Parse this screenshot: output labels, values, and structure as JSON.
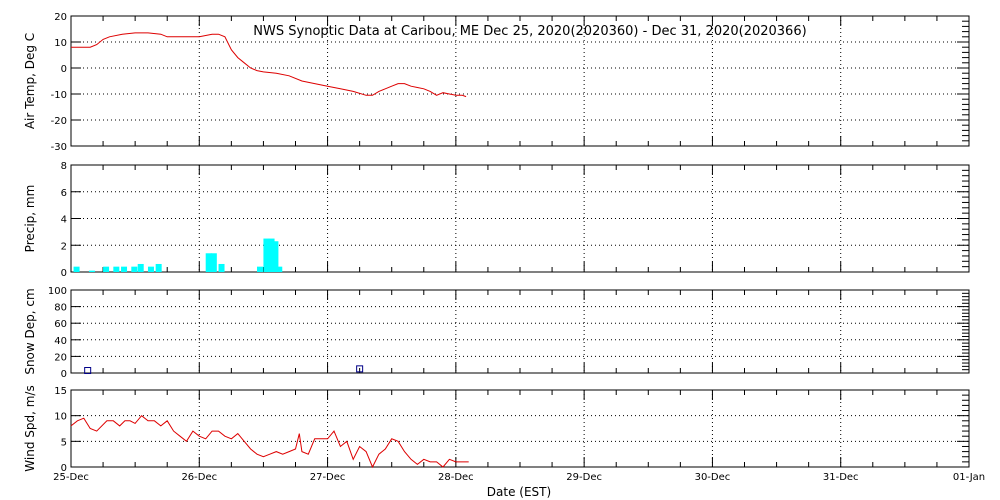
{
  "title": "NWS Synoptic Data at Caribou, ME    Dec 25, 2020(2020360) - Dec 31, 2020(2020366)",
  "colors": {
    "line": "#dd0000",
    "bar": "#00ffff",
    "marker": "#000088",
    "axis": "#000000",
    "grid": "#000000"
  },
  "x_axis": {
    "label": "Date (EST)",
    "ticks": [
      "25-Dec",
      "26-Dec",
      "27-Dec",
      "28-Dec",
      "29-Dec",
      "30-Dec",
      "31-Dec",
      "01-Jan"
    ],
    "range_days": [
      0,
      7
    ]
  },
  "chart_data": [
    {
      "type": "line",
      "name": "air-temp",
      "ylabel": "Air Temp, Deg C",
      "ylim": [
        -30,
        20
      ],
      "yticks": [
        20,
        10,
        0,
        -10,
        -20,
        -30
      ],
      "grid": true,
      "x": [
        0,
        0.08,
        0.15,
        0.2,
        0.25,
        0.3,
        0.4,
        0.5,
        0.6,
        0.7,
        0.75,
        0.8,
        0.9,
        1.0,
        1.1,
        1.15,
        1.2,
        1.25,
        1.3,
        1.35,
        1.4,
        1.45,
        1.5,
        1.6,
        1.7,
        1.8,
        1.9,
        2.0,
        2.1,
        2.2,
        2.3,
        2.35,
        2.4,
        2.45,
        2.5,
        2.55,
        2.6,
        2.65,
        2.7,
        2.75,
        2.8,
        2.85,
        2.9,
        2.95,
        3.0,
        3.05,
        3.08
      ],
      "values": [
        8,
        8,
        8,
        9,
        11,
        12,
        13,
        13.5,
        13.5,
        13,
        12,
        12,
        12,
        12,
        13,
        13,
        12,
        7,
        4,
        2,
        0,
        -1,
        -1.5,
        -2,
        -3,
        -5,
        -6,
        -7,
        -8,
        -9,
        -10.5,
        -10.5,
        -9,
        -8,
        -7,
        -6,
        -6,
        -7,
        -7.5,
        -8,
        -9,
        -10.5,
        -9.5,
        -10,
        -10.5,
        -10.5,
        -11
      ]
    },
    {
      "type": "bar",
      "name": "precip",
      "ylabel": "Precip, mm",
      "ylim": [
        0,
        8
      ],
      "yticks": [
        8,
        6,
        4,
        2,
        0
      ],
      "grid": true,
      "x": [
        0.02,
        0.14,
        0.25,
        0.33,
        0.39,
        0.47,
        0.52,
        0.6,
        0.66,
        1.05,
        1.09,
        1.15,
        1.45,
        1.5,
        1.54,
        1.57,
        1.6
      ],
      "values": [
        0.4,
        0.1,
        0.4,
        0.4,
        0.4,
        0.4,
        0.6,
        0.4,
        0.6,
        1.4,
        1.4,
        0.6,
        0.4,
        2.5,
        2.5,
        2.3,
        0.4
      ]
    },
    {
      "type": "scatter",
      "name": "snow-depth",
      "ylabel": "Snow Dep, cm",
      "ylim": [
        0,
        100
      ],
      "yticks": [
        100,
        80,
        60,
        40,
        20,
        0
      ],
      "grid": true,
      "x": [
        0.13,
        2.25
      ],
      "values": [
        3,
        5
      ]
    },
    {
      "type": "line",
      "name": "wind-speed",
      "ylabel": "Wind Spd, m/s",
      "ylim": [
        0,
        15
      ],
      "yticks": [
        15,
        10,
        5,
        0
      ],
      "grid": true,
      "x": [
        0,
        0.05,
        0.1,
        0.15,
        0.2,
        0.28,
        0.33,
        0.38,
        0.42,
        0.46,
        0.5,
        0.55,
        0.6,
        0.65,
        0.7,
        0.75,
        0.8,
        0.85,
        0.9,
        0.95,
        1.0,
        1.05,
        1.1,
        1.15,
        1.2,
        1.25,
        1.3,
        1.35,
        1.4,
        1.45,
        1.5,
        1.55,
        1.6,
        1.65,
        1.7,
        1.75,
        1.78,
        1.8,
        1.85,
        1.9,
        1.95,
        2.0,
        2.05,
        2.1,
        2.15,
        2.2,
        2.25,
        2.3,
        2.35,
        2.4,
        2.45,
        2.5,
        2.55,
        2.6,
        2.65,
        2.7,
        2.75,
        2.8,
        2.85,
        2.9,
        2.95,
        3.0,
        3.05,
        3.1
      ],
      "values": [
        8,
        9,
        9.5,
        7.5,
        7,
        9,
        9,
        8,
        9,
        9,
        8.5,
        10,
        9,
        9,
        8,
        9,
        7,
        6,
        5,
        7,
        6,
        5.5,
        7,
        7,
        6,
        5.5,
        6.5,
        5,
        3.5,
        2.5,
        2,
        2.5,
        3,
        2.5,
        3,
        3.5,
        6.5,
        3,
        2.5,
        5.5,
        5.5,
        5.5,
        7,
        4,
        5,
        1.5,
        4,
        3,
        0,
        2.5,
        3.5,
        5.5,
        5,
        3,
        1.5,
        0.5,
        1.5,
        1,
        1,
        0,
        1.5,
        1,
        1,
        1
      ]
    }
  ]
}
